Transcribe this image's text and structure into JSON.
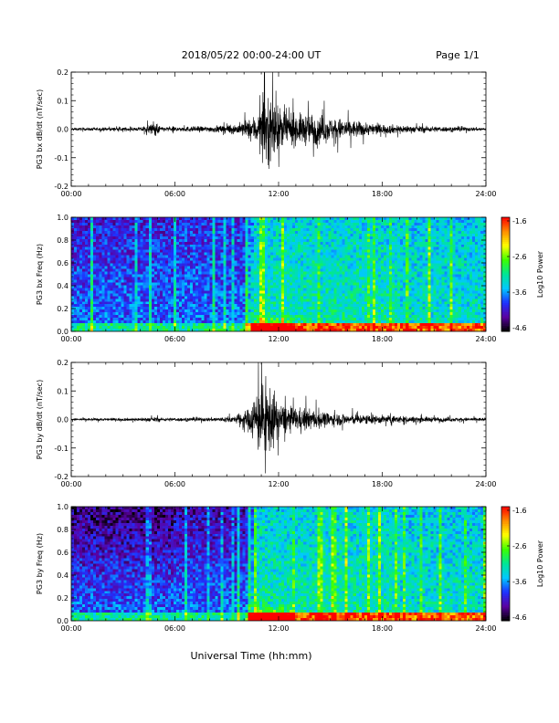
{
  "header": {
    "title": "2018/05/22   00:00-24:00 UT",
    "page": "Page 1/1"
  },
  "xlabel": "Universal Time (hh:mm)",
  "x_ticks": [
    "00:00",
    "06:00",
    "12:00",
    "18:00",
    "24:00"
  ],
  "colorbar": {
    "label": "Log10 Power",
    "ticks": [
      "-1.6",
      "-2.6",
      "-3.6",
      "-4.6"
    ],
    "range": [
      -4.6,
      -1.6
    ],
    "colormap": [
      "#000000",
      "#5a00a0",
      "#1e32ff",
      "#00c8ff",
      "#00e696",
      "#3cff00",
      "#ffff00",
      "#ff8c00",
      "#ff0000"
    ]
  },
  "chart_data": [
    {
      "type": "line",
      "name": "bx-timeseries",
      "ylabel": "PG3 bx dB/dt (nT/sec)",
      "y_ticks": [
        "0.2",
        "0.1",
        "0.0",
        "-0.1",
        "-0.2"
      ],
      "ylim": [
        -0.2,
        0.2
      ],
      "xlim": [
        "00:00",
        "24:00"
      ],
      "line_color": "#000000",
      "envelope": {
        "x_hours": [
          0,
          2,
          4,
          4.9,
          5.2,
          6,
          8,
          9.5,
          10.3,
          10.8,
          11.2,
          11.6,
          12,
          13,
          14,
          15,
          16,
          17,
          18,
          20,
          22,
          24
        ],
        "amplitude": [
          0.008,
          0.01,
          0.012,
          0.04,
          0.015,
          0.015,
          0.018,
          0.03,
          0.06,
          0.1,
          0.2,
          0.2,
          0.13,
          0.09,
          0.1,
          0.07,
          0.06,
          0.04,
          0.03,
          0.02,
          0.015,
          0.01
        ]
      }
    },
    {
      "type": "heatmap",
      "name": "bx-spectrogram",
      "ylabel": "PG3 bx Freq (Hz)",
      "y_ticks": [
        "1.0",
        "0.8",
        "0.6",
        "0.4",
        "0.2",
        "0.0"
      ],
      "ylim": [
        0,
        1.0
      ],
      "xlim": [
        "00:00",
        "24:00"
      ],
      "zlim": [
        -4.6,
        -1.6
      ]
    },
    {
      "type": "line",
      "name": "by-timeseries",
      "ylabel": "PG3 by dB/dt (nT/sec)",
      "y_ticks": [
        "0.2",
        "0.1",
        "0.0",
        "-0.1",
        "-0.2"
      ],
      "ylim": [
        -0.2,
        0.2
      ],
      "xlim": [
        "00:00",
        "24:00"
      ],
      "line_color": "#000000",
      "envelope": {
        "x_hours": [
          0,
          2,
          4,
          4.9,
          5.3,
          6,
          8,
          9.5,
          10.2,
          10.8,
          11.2,
          11.6,
          12,
          13,
          14,
          15,
          16.5,
          17,
          18,
          20,
          22,
          24
        ],
        "amplitude": [
          0.007,
          0.008,
          0.01,
          0.015,
          0.01,
          0.01,
          0.012,
          0.02,
          0.06,
          0.2,
          0.2,
          0.2,
          0.1,
          0.07,
          0.06,
          0.04,
          0.03,
          0.03,
          0.025,
          0.018,
          0.012,
          0.01
        ]
      }
    },
    {
      "type": "heatmap",
      "name": "by-spectrogram",
      "ylabel": "PG3 by Freq (Hz)",
      "y_ticks": [
        "1.0",
        "0.8",
        "0.6",
        "0.4",
        "0.2",
        "0.0"
      ],
      "ylim": [
        0,
        1.0
      ],
      "xlim": [
        "00:00",
        "24:00"
      ],
      "zlim": [
        -4.6,
        -1.6
      ]
    }
  ]
}
